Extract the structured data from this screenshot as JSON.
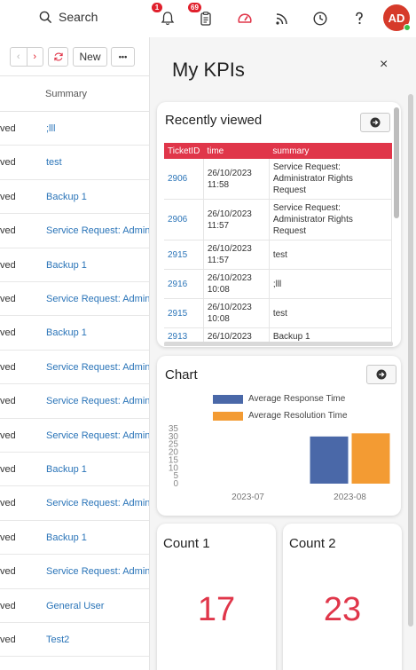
{
  "topbar": {
    "search_label": "Search",
    "notifications_badge": "1",
    "tasks_badge": "69",
    "avatar_initials": "AD",
    "colors": {
      "badge": "#e0202c",
      "avatar": "#d63a2a",
      "online": "#3bbf4a"
    }
  },
  "list": {
    "toolbar": {
      "new_label": "New",
      "more_label": "•••"
    },
    "column_summary": "Summary",
    "rows": [
      {
        "status": "ved",
        "summary": ";lll"
      },
      {
        "status": "ved",
        "summary": "test"
      },
      {
        "status": "ved",
        "summary": "Backup 1"
      },
      {
        "status": "ved",
        "summary": "Service Request: Admin"
      },
      {
        "status": "ved",
        "summary": "Backup 1"
      },
      {
        "status": "ved",
        "summary": "Service Request: Admin"
      },
      {
        "status": "ved",
        "summary": "Backup 1"
      },
      {
        "status": "ved",
        "summary": "Service Request: Admin"
      },
      {
        "status": "ved",
        "summary": "Service Request: Admin"
      },
      {
        "status": "ved",
        "summary": "Service Request: Admin"
      },
      {
        "status": "ved",
        "summary": "Backup 1"
      },
      {
        "status": "ved",
        "summary": "Service Request: Admin"
      },
      {
        "status": "ved",
        "summary": "Backup 1"
      },
      {
        "status": "ved",
        "summary": "Service Request: Admin"
      },
      {
        "status": "ved",
        "summary": "General User"
      },
      {
        "status": "ved",
        "summary": "Test2"
      }
    ]
  },
  "panel": {
    "title": "My KPIs",
    "close_label": "×",
    "recently_viewed": {
      "title": "Recently viewed",
      "columns": [
        "TicketID",
        "time",
        "summary"
      ],
      "rows": [
        {
          "id": "2906",
          "time": "26/10/2023 11:58",
          "summary": "Service Request: Administrator Rights Request"
        },
        {
          "id": "2906",
          "time": "26/10/2023 11:57",
          "summary": "Service Request: Administrator Rights Request"
        },
        {
          "id": "2915",
          "time": "26/10/2023 11:57",
          "summary": "test"
        },
        {
          "id": "2916",
          "time": "26/10/2023 10:08",
          "summary": ";lll"
        },
        {
          "id": "2915",
          "time": "26/10/2023 10:08",
          "summary": "test"
        },
        {
          "id": "2913",
          "time": "26/10/2023",
          "summary": "Backup 1"
        }
      ]
    },
    "chart_card": {
      "title": "Chart"
    },
    "count1": {
      "title": "Count 1",
      "value": "17"
    },
    "count2": {
      "title": "Count 2",
      "value": "23"
    }
  },
  "chart_data": {
    "type": "bar",
    "categories": [
      "2023-07",
      "2023-08"
    ],
    "series": [
      {
        "name": "Average Response Time",
        "values": [
          0,
          30
        ],
        "color": "#4a68a8"
      },
      {
        "name": "Average Resolution Time",
        "values": [
          0,
          32
        ],
        "color": "#f39b33"
      }
    ],
    "ylim": [
      0,
      35
    ],
    "yticks": [
      0,
      5,
      10,
      15,
      20,
      25,
      30,
      35
    ],
    "legend_position": "top",
    "grid": false
  }
}
